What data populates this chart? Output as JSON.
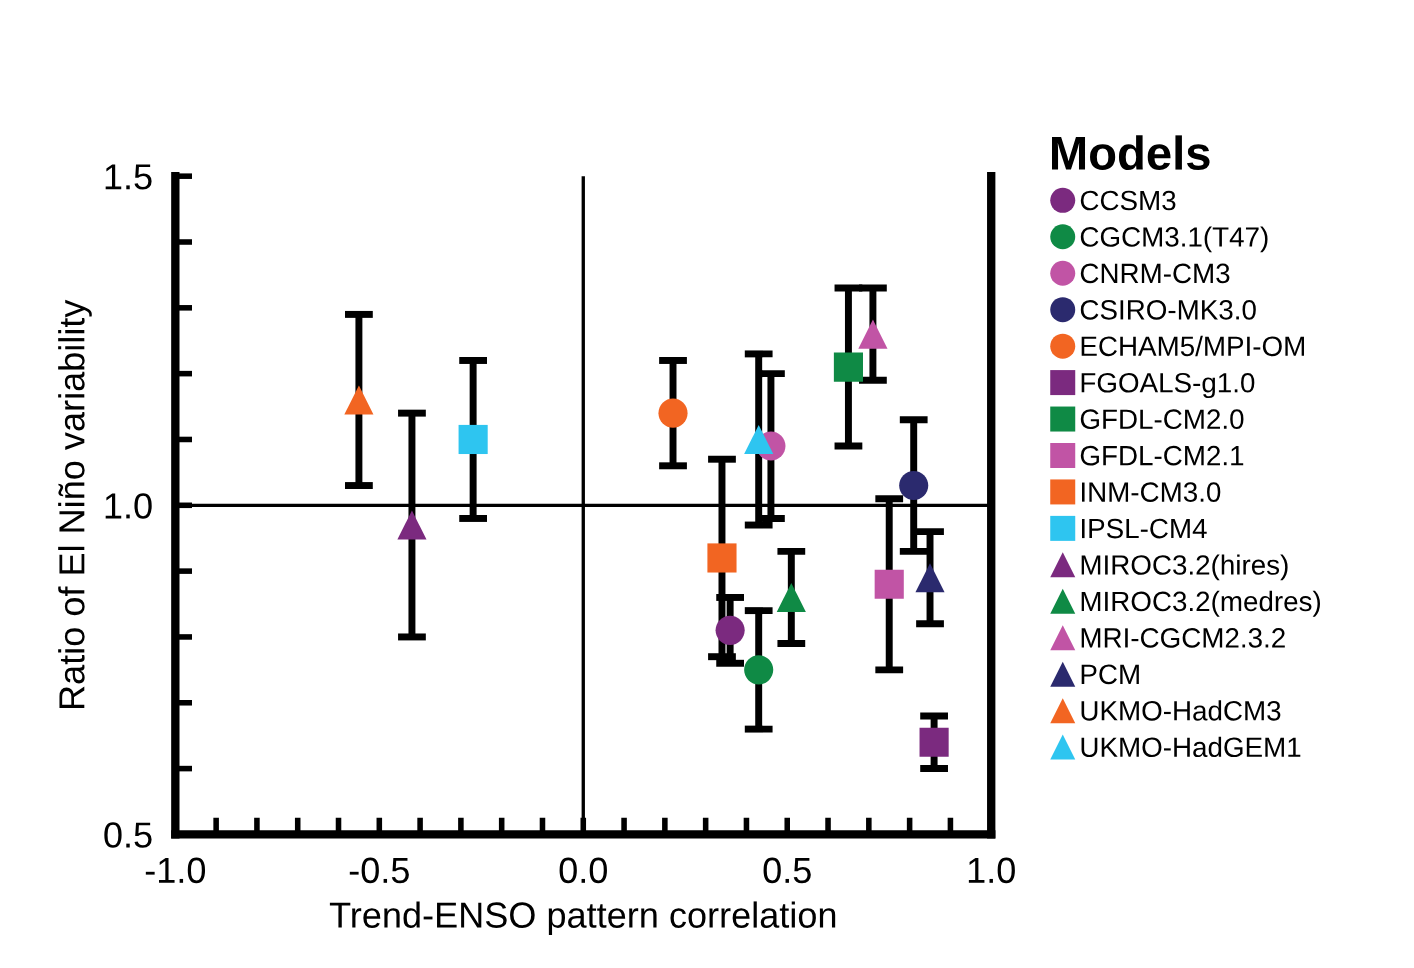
{
  "chart_data": {
    "type": "scatter",
    "xlabel": "Trend-ENSO pattern correlation",
    "ylabel": "Ratio of El Niño variability",
    "legend_title": "Models",
    "legend": "right",
    "grid": false,
    "xlim": [
      -1.0,
      1.0
    ],
    "ylim": [
      0.5,
      1.5
    ],
    "xticks": [
      {
        "value": -1.0,
        "label": "-1.0"
      },
      {
        "value": -0.9,
        "label": null
      },
      {
        "value": -0.8,
        "label": null
      },
      {
        "value": -0.7,
        "label": null
      },
      {
        "value": -0.6,
        "label": null
      },
      {
        "value": -0.5,
        "label": "-0.5"
      },
      {
        "value": -0.4,
        "label": null
      },
      {
        "value": -0.3,
        "label": null
      },
      {
        "value": -0.2,
        "label": null
      },
      {
        "value": -0.1,
        "label": null
      },
      {
        "value": 0.0,
        "label": "0.0"
      },
      {
        "value": 0.1,
        "label": null
      },
      {
        "value": 0.2,
        "label": null
      },
      {
        "value": 0.3,
        "label": null
      },
      {
        "value": 0.4,
        "label": null
      },
      {
        "value": 0.5,
        "label": "0.5"
      },
      {
        "value": 0.6,
        "label": null
      },
      {
        "value": 0.7,
        "label": null
      },
      {
        "value": 0.8,
        "label": null
      },
      {
        "value": 0.9,
        "label": null
      },
      {
        "value": 1.0,
        "label": "1.0"
      }
    ],
    "yticks": [
      {
        "value": 0.5,
        "label": "0.5"
      },
      {
        "value": 0.6,
        "label": null
      },
      {
        "value": 0.7,
        "label": null
      },
      {
        "value": 0.8,
        "label": null
      },
      {
        "value": 0.9,
        "label": null
      },
      {
        "value": 1.0,
        "label": "1.0"
      },
      {
        "value": 1.1,
        "label": null
      },
      {
        "value": 1.2,
        "label": null
      },
      {
        "value": 1.3,
        "label": null
      },
      {
        "value": 1.4,
        "label": null
      },
      {
        "value": 1.5,
        "label": "1.5"
      }
    ],
    "ref_lines": [
      {
        "axis": "x",
        "value": 0.0,
        "color": "#000000"
      },
      {
        "axis": "y",
        "value": 1.0,
        "color": "#000000"
      }
    ],
    "series": [
      {
        "name": "CCSM3",
        "color": "#7b2a7f",
        "marker": "circle",
        "x": [
          0.36
        ],
        "values": [
          0.81
        ],
        "errors": [
          [
            0.76,
            0.86
          ]
        ]
      },
      {
        "name": "CGCM3.1(T47)",
        "color": "#0f8a45",
        "marker": "circle",
        "x": [
          0.43
        ],
        "values": [
          0.75
        ],
        "errors": [
          [
            0.66,
            0.84
          ]
        ]
      },
      {
        "name": "CNRM-CM3",
        "color": "#c154a5",
        "marker": "circle",
        "x": [
          0.46
        ],
        "values": [
          1.09
        ],
        "errors": [
          [
            0.98,
            1.2
          ]
        ]
      },
      {
        "name": "CSIRO-MK3.0",
        "color": "#2b2a6e",
        "marker": "circle",
        "x": [
          0.81
        ],
        "values": [
          1.03
        ],
        "errors": [
          [
            0.93,
            1.13
          ]
        ]
      },
      {
        "name": "ECHAM5/MPI-OM",
        "color": "#f26522",
        "marker": "circle",
        "x": [
          0.22
        ],
        "values": [
          1.14
        ],
        "errors": [
          [
            1.06,
            1.22
          ]
        ]
      },
      {
        "name": "FGOALS-g1.0",
        "color": "#7b2a7f",
        "marker": "square",
        "x": [
          0.86
        ],
        "values": [
          0.64
        ],
        "errors": [
          [
            0.6,
            0.68
          ]
        ]
      },
      {
        "name": "GFDL-CM2.0",
        "color": "#0f8a45",
        "marker": "square",
        "x": [
          0.65
        ],
        "values": [
          1.21
        ],
        "errors": [
          [
            1.09,
            1.33
          ]
        ]
      },
      {
        "name": "GFDL-CM2.1",
        "color": "#c154a5",
        "marker": "square",
        "x": [
          0.75
        ],
        "values": [
          0.88
        ],
        "errors": [
          [
            0.75,
            1.01
          ]
        ]
      },
      {
        "name": "INM-CM3.0",
        "color": "#f26522",
        "marker": "square",
        "x": [
          0.34
        ],
        "values": [
          0.92
        ],
        "errors": [
          [
            0.77,
            1.07
          ]
        ]
      },
      {
        "name": "IPSL-CM4",
        "color": "#2ec5f0",
        "marker": "square",
        "x": [
          -0.27
        ],
        "values": [
          1.1
        ],
        "errors": [
          [
            0.98,
            1.22
          ]
        ]
      },
      {
        "name": "MIROC3.2(hires)",
        "color": "#7b2a7f",
        "marker": "triangle",
        "x": [
          -0.42
        ],
        "values": [
          0.97
        ],
        "errors": [
          [
            0.8,
            1.14
          ]
        ]
      },
      {
        "name": "MIROC3.2(medres)",
        "color": "#0f8a45",
        "marker": "triangle",
        "x": [
          0.51
        ],
        "values": [
          0.86
        ],
        "errors": [
          [
            0.79,
            0.93
          ]
        ]
      },
      {
        "name": "MRI-CGCM2.3.2",
        "color": "#c154a5",
        "marker": "triangle",
        "x": [
          0.71
        ],
        "values": [
          1.26
        ],
        "errors": [
          [
            1.19,
            1.33
          ]
        ]
      },
      {
        "name": "PCM",
        "color": "#2b2a6e",
        "marker": "triangle",
        "x": [
          0.85
        ],
        "values": [
          0.89
        ],
        "errors": [
          [
            0.82,
            0.96
          ]
        ]
      },
      {
        "name": "UKMO-HadCM3",
        "color": "#f26522",
        "marker": "triangle",
        "x": [
          -0.55
        ],
        "values": [
          1.16
        ],
        "errors": [
          [
            1.03,
            1.29
          ]
        ]
      },
      {
        "name": "UKMO-HadGEM1",
        "color": "#2ec5f0",
        "marker": "triangle",
        "x": [
          0.43
        ],
        "values": [
          1.1
        ],
        "errors": [
          [
            0.97,
            1.23
          ]
        ]
      }
    ]
  }
}
